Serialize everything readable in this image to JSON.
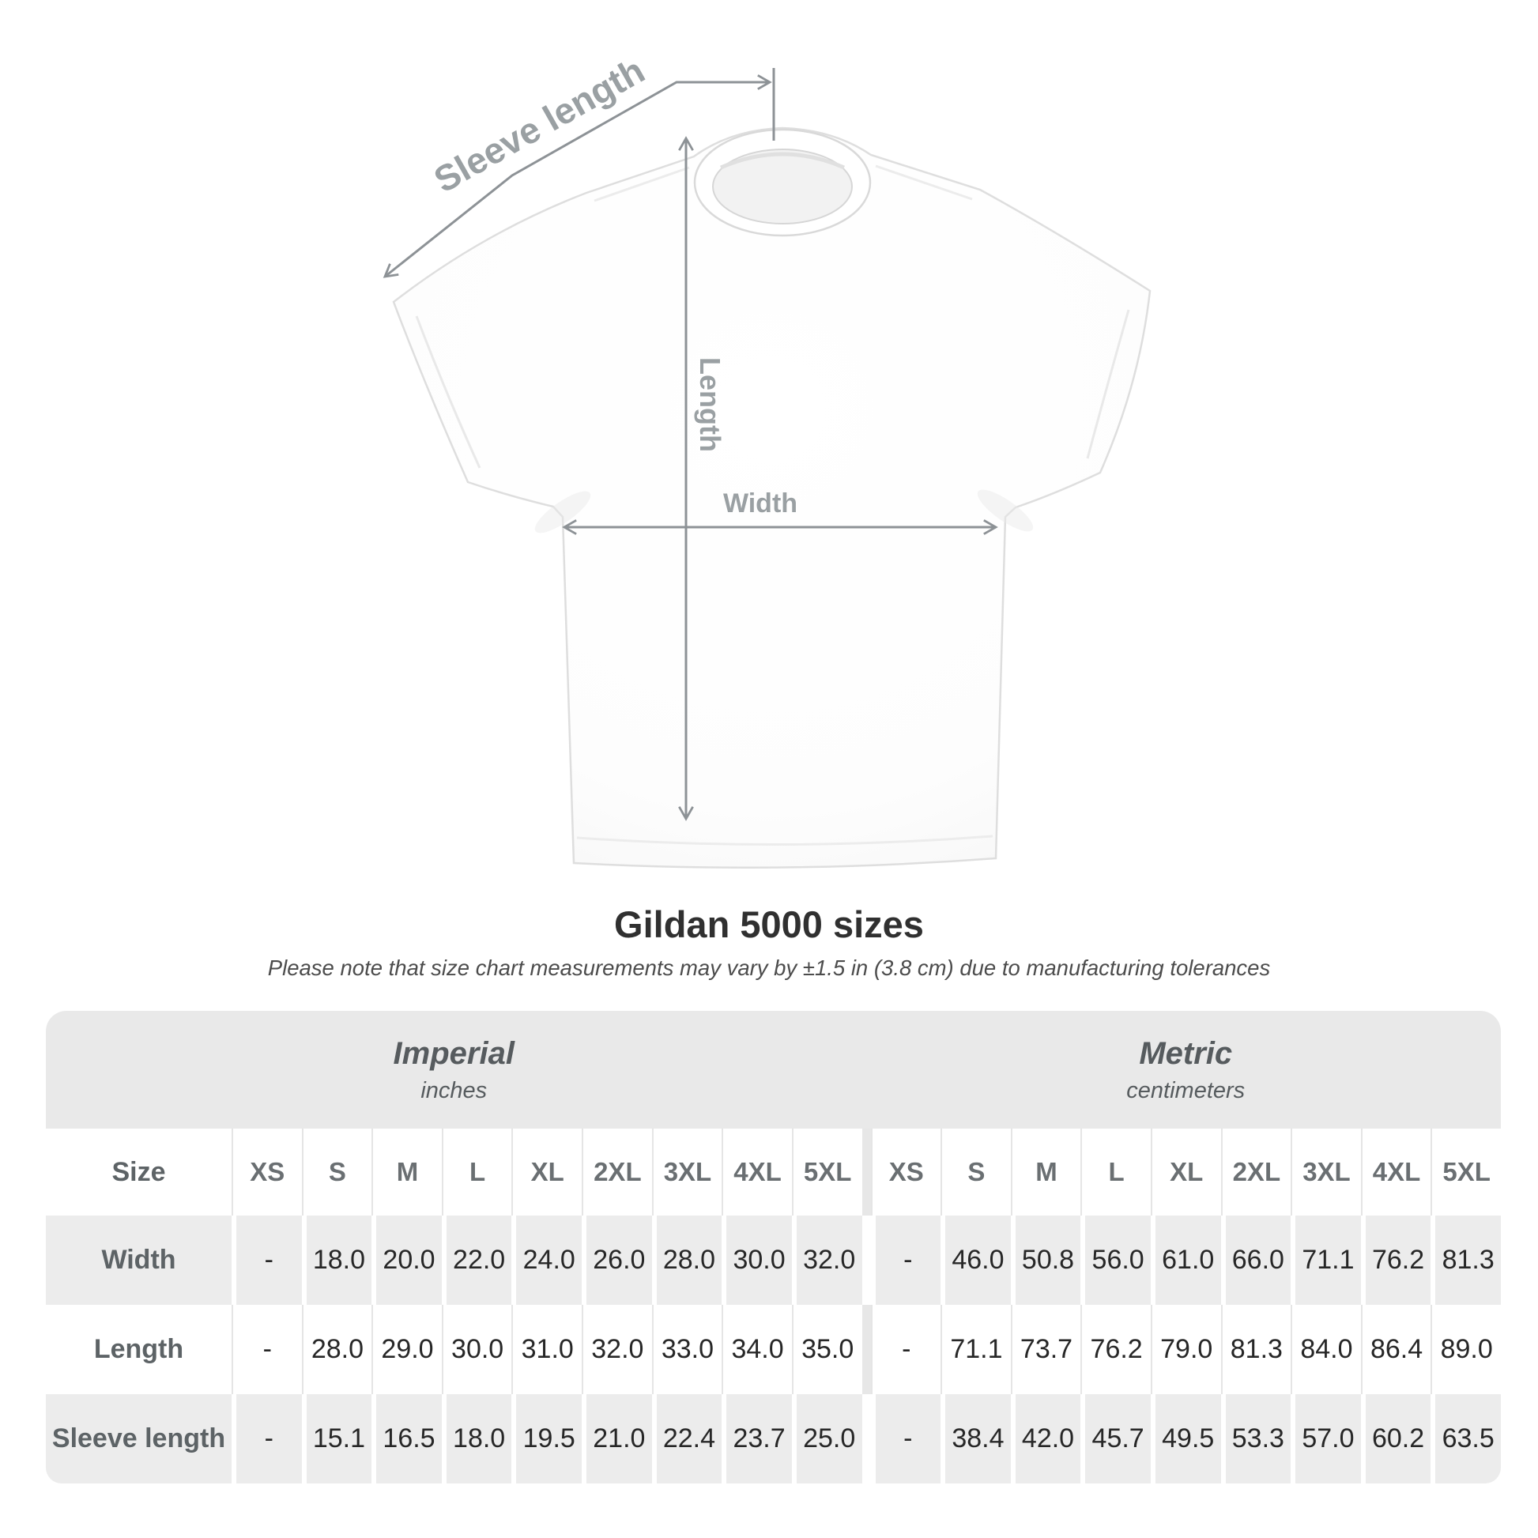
{
  "title": "Gildan 5000 sizes",
  "subtitle": "Please note that size chart measurements may vary by ±1.5 in (3.8 cm) due to manufacturing tolerances",
  "diagram": {
    "labels": {
      "sleeve_length": "Sleeve length",
      "length": "Length",
      "width": "Width"
    }
  },
  "colors": {
    "dimension_lines": "#8d9296",
    "dimension_labels": "#9aa0a3",
    "table_band": "#e9e9e9",
    "table_row_shaded": "#ececec",
    "title_text": "#303030"
  },
  "table": {
    "unit_groups": [
      {
        "name": "Imperial",
        "unit": "inches"
      },
      {
        "name": "Metric",
        "unit": "centimeters"
      }
    ],
    "size_label": "Size",
    "sizes": [
      "XS",
      "S",
      "M",
      "L",
      "XL",
      "2XL",
      "3XL",
      "4XL",
      "5XL"
    ],
    "rows": [
      {
        "label": "Width",
        "imperial": [
          "-",
          "18.0",
          "20.0",
          "22.0",
          "24.0",
          "26.0",
          "28.0",
          "30.0",
          "32.0"
        ],
        "metric": [
          "-",
          "46.0",
          "50.8",
          "56.0",
          "61.0",
          "66.0",
          "71.1",
          "76.2",
          "81.3"
        ]
      },
      {
        "label": "Length",
        "imperial": [
          "-",
          "28.0",
          "29.0",
          "30.0",
          "31.0",
          "32.0",
          "33.0",
          "34.0",
          "35.0"
        ],
        "metric": [
          "-",
          "71.1",
          "73.7",
          "76.2",
          "79.0",
          "81.3",
          "84.0",
          "86.4",
          "89.0"
        ]
      },
      {
        "label": "Sleeve length",
        "imperial": [
          "-",
          "15.1",
          "16.5",
          "18.0",
          "19.5",
          "21.0",
          "22.4",
          "23.7",
          "25.0"
        ],
        "metric": [
          "-",
          "38.4",
          "42.0",
          "45.7",
          "49.5",
          "53.3",
          "57.0",
          "60.2",
          "63.5"
        ]
      }
    ]
  }
}
